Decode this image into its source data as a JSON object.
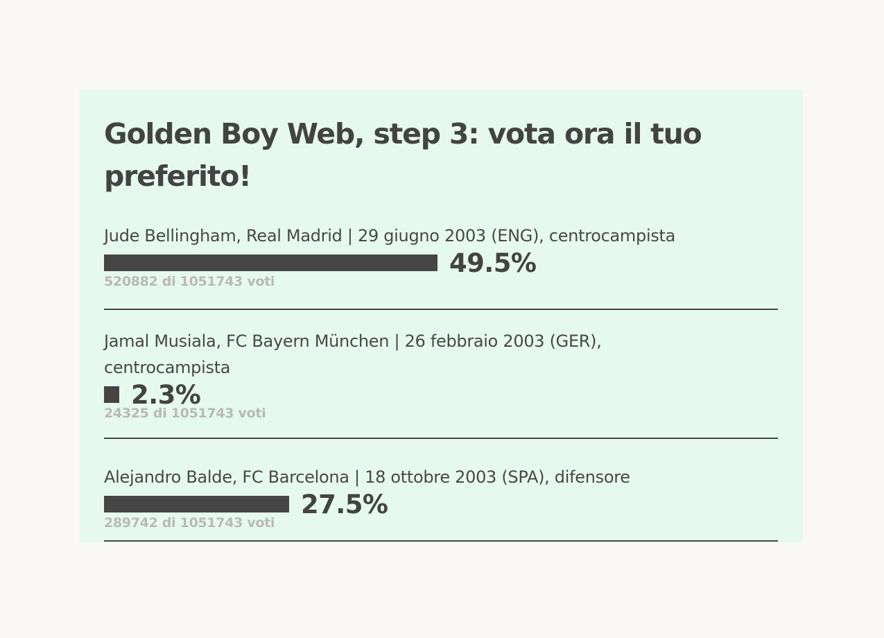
{
  "poll": {
    "title": "Golden Boy Web, step 3: vota ora il tuo preferito!",
    "candidates": [
      {
        "label": "Jude Bellingham, Real Madrid | 29 giugno 2003 (ENG), centrocampista",
        "percent_text": "49.5%",
        "share": 0.495,
        "votes_text": "520882 di 1051743 voti"
      },
      {
        "label": "Jamal Musiala, FC Bayern München | 26 febbraio 2003 (GER), centrocampista",
        "percent_text": "2.3%",
        "share": 0.023,
        "votes_text": "24325 di 1051743 voti"
      },
      {
        "label": "Alejandro Balde, FC Barcelona | 18 ottobre 2003 (SPA), difensore",
        "percent_text": "27.5%",
        "share": 0.275,
        "votes_text": "289742 di 1051743 voti"
      }
    ]
  },
  "colors": {
    "page_background": "#f9f8f7",
    "panel_background": "#e6f9ef",
    "bar": "#454545",
    "votes_text": "#b9b9b9"
  }
}
